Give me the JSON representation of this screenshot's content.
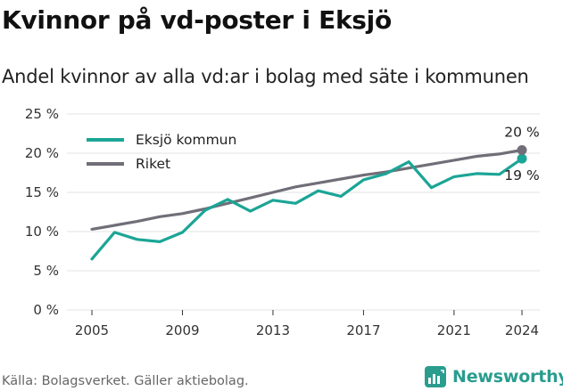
{
  "header": {
    "title": "Kvinnor på vd-poster i Eksjö",
    "subtitle": "Andel kvinnor av alla vd:ar i bolag med säte i kommunen"
  },
  "footer": {
    "source": "Källa: Bolagsverket. Gäller aktiebolag.",
    "brand": "Newsworthy"
  },
  "colors": {
    "eksjo": "#1ba596",
    "riket": "#716e78",
    "grid": "#e3e3e3"
  },
  "chart_data": {
    "type": "line",
    "x": [
      2005,
      2006,
      2007,
      2008,
      2009,
      2010,
      2011,
      2012,
      2013,
      2014,
      2015,
      2016,
      2017,
      2018,
      2019,
      2020,
      2021,
      2022,
      2023,
      2024
    ],
    "series": [
      {
        "name": "Eksjö kommun",
        "values": [
          6.5,
          9.9,
          9.0,
          8.7,
          9.9,
          12.7,
          14.1,
          12.6,
          14.0,
          13.6,
          15.2,
          14.5,
          16.6,
          17.4,
          18.9,
          15.6,
          17.0,
          17.4,
          17.3,
          19.3
        ],
        "end_label": "19 %"
      },
      {
        "name": "Riket",
        "values": [
          10.3,
          10.8,
          11.3,
          11.9,
          12.3,
          12.9,
          13.6,
          14.3,
          15.0,
          15.7,
          16.2,
          16.7,
          17.2,
          17.6,
          18.1,
          18.6,
          19.1,
          19.6,
          19.9,
          20.4
        ],
        "end_label": "20 %"
      }
    ],
    "ylim": [
      0,
      25
    ],
    "yticks": [
      0,
      5,
      10,
      15,
      20,
      25
    ],
    "ytick_labels": [
      "0 %",
      "5 %",
      "10 %",
      "15 %",
      "20 %",
      "25 %"
    ],
    "xticks": [
      2005,
      2009,
      2013,
      2017,
      2021,
      2024
    ],
    "xtick_labels": [
      "2005",
      "2009",
      "2013",
      "2017",
      "2021",
      "2024"
    ],
    "xlim": [
      2005,
      2024
    ],
    "grid": "horizontal",
    "legend_position": "top-left"
  }
}
